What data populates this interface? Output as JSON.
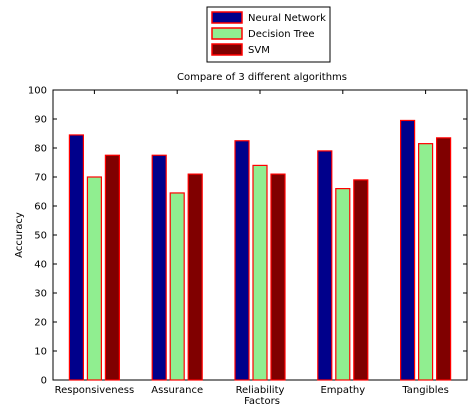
{
  "chart_data": {
    "type": "bar",
    "title": "Compare of 3 different algorithms",
    "xlabel": "Factors",
    "ylabel": "Accuracy",
    "ylim": [
      0,
      100
    ],
    "yticks": [
      "0",
      "10",
      "20",
      "30",
      "40",
      "50",
      "60",
      "70",
      "80",
      "90",
      "100"
    ],
    "categories": [
      "Responsiveness",
      "Assurance",
      "Reliability",
      "Empathy",
      "Tangibles"
    ],
    "series": [
      {
        "name": "Neural Network",
        "values": [
          84.5,
          77.5,
          82.5,
          79,
          89.5
        ],
        "color": "#00008b",
        "edge": "#ff0000"
      },
      {
        "name": "Decision Tree",
        "values": [
          70,
          64.5,
          74,
          66,
          81.5
        ],
        "color": "#90ee90",
        "edge": "#ff0000"
      },
      {
        "name": "SVM",
        "values": [
          77.5,
          71,
          71,
          69,
          83.5
        ],
        "color": "#800000",
        "edge": "#ff0000"
      }
    ],
    "grid": false,
    "legend": "top-center, outside plot"
  }
}
